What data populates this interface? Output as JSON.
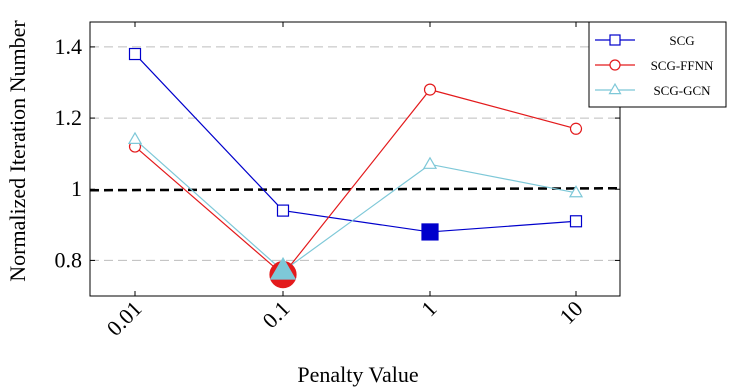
{
  "chart_data": {
    "type": "line",
    "title": "",
    "xlabel": "Penalty Value",
    "ylabel": "Normalized Iteration Number",
    "categories": [
      "0.01",
      "0.1",
      "1",
      "10"
    ],
    "yticks": [
      "0.8",
      "1",
      "1.2",
      "1.4"
    ],
    "ylim": [
      0.7,
      1.47
    ],
    "grid": "horizontal dashed",
    "legend_position": "top-right",
    "reference_line": {
      "y": 1.0,
      "style": "dashed",
      "color": "#000000"
    },
    "series": [
      {
        "name": "SCG",
        "color": "#0000cc",
        "marker": "square",
        "values": [
          1.38,
          0.94,
          0.88,
          0.91
        ],
        "highlight": {
          "index": 2,
          "value": 0.88,
          "marker": "filled-square"
        }
      },
      {
        "name": "SCG-FFNN",
        "color": "#e31a1c",
        "marker": "circle",
        "values": [
          1.12,
          0.76,
          1.28,
          1.17
        ],
        "highlight": {
          "index": 1,
          "value": 0.76,
          "marker": "filled-circle"
        }
      },
      {
        "name": "SCG-GCN",
        "color": "#7ec8d8",
        "marker": "triangle",
        "values": [
          1.14,
          0.77,
          1.07,
          0.99
        ],
        "highlight": {
          "index": 1,
          "value": 0.77,
          "marker": "filled-triangle"
        }
      }
    ]
  }
}
